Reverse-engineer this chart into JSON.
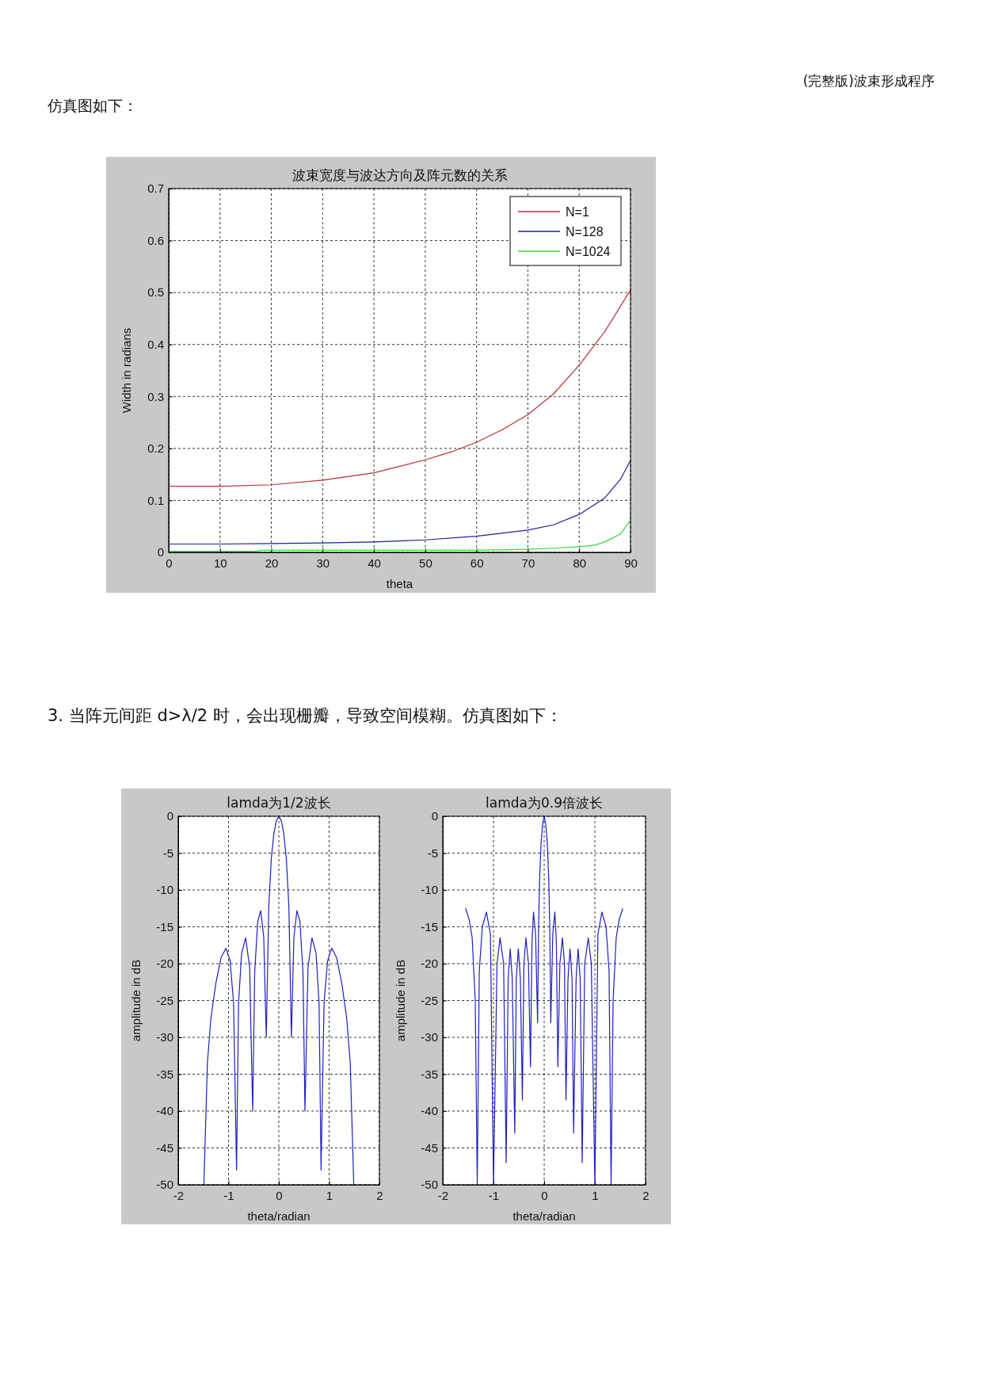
{
  "chart_data": [
    {
      "type": "line",
      "title": "波束宽度与波达方向及阵元数的关系",
      "xlabel": "theta",
      "ylabel": "Width in radians",
      "annotations": [
        "(完整版)波束形成程序",
        "仿真图如下："
      ],
      "xlim": [
        0,
        90
      ],
      "xticks": [
        0,
        10,
        20,
        30,
        40,
        50,
        60,
        70,
        80,
        90
      ],
      "ylim": [
        0,
        0.7
      ],
      "yticks": [
        0,
        0.1,
        0.2,
        0.3,
        0.4,
        0.5,
        0.6,
        0.7
      ],
      "grid": true,
      "legend": "top right",
      "series": [
        {
          "name": "N=1",
          "color": "#b83030",
          "x": [
            0,
            10,
            20,
            30,
            40,
            50,
            55,
            60,
            65,
            70,
            75,
            80,
            85,
            90
          ],
          "values": [
            0.127,
            0.127,
            0.13,
            0.139,
            0.153,
            0.178,
            0.193,
            0.212,
            0.236,
            0.265,
            0.305,
            0.36,
            0.425,
            0.505
          ]
        },
        {
          "name": "N=128",
          "color": "#1e1e9a",
          "x": [
            0,
            10,
            20,
            30,
            40,
            50,
            60,
            70,
            75,
            80,
            83,
            85,
            88,
            90
          ],
          "values": [
            0.016,
            0.016,
            0.017,
            0.018,
            0.02,
            0.024,
            0.031,
            0.043,
            0.053,
            0.073,
            0.092,
            0.105,
            0.14,
            0.177
          ]
        },
        {
          "name": "N=1024",
          "color": "#33dd33",
          "x": [
            0,
            17,
            18,
            40,
            60,
            70,
            75,
            80,
            83,
            85,
            88,
            90
          ],
          "values": [
            0.002,
            0.002,
            0.004,
            0.004,
            0.004,
            0.006,
            0.008,
            0.011,
            0.014,
            0.02,
            0.035,
            0.062
          ]
        }
      ]
    },
    {
      "type": "line",
      "title": "lamda为1/2波长",
      "xlabel": "theta/radian",
      "ylabel": "amplitude in dB",
      "annotations": [
        "3. 当阵元间距 d>λ/2 时，会出现栅瓣，导致空间模糊。仿真图如下："
      ],
      "xlim": [
        -2,
        2
      ],
      "xticks": [
        -2,
        -1,
        0,
        1,
        2
      ],
      "ylim": [
        -50,
        0
      ],
      "yticks": [
        -50,
        -45,
        -40,
        -35,
        -30,
        -25,
        -20,
        -15,
        -10,
        -5,
        0
      ],
      "grid": true,
      "series": [
        {
          "color": "#1f1fbf",
          "x": [
            -1.49,
            -1.42,
            -1.35,
            -1.25,
            -1.15,
            -1.05,
            -0.97,
            -0.9,
            -0.84,
            -0.8,
            -0.74,
            -0.66,
            -0.58,
            -0.52,
            -0.48,
            -0.42,
            -0.36,
            -0.3,
            -0.25,
            -0.2,
            -0.15,
            -0.1,
            -0.05,
            0,
            0.05,
            0.1,
            0.15,
            0.2,
            0.25,
            0.3,
            0.36,
            0.42,
            0.48,
            0.52,
            0.58,
            0.66,
            0.74,
            0.8,
            0.84,
            0.9,
            0.97,
            1.05,
            1.15,
            1.25,
            1.35,
            1.42,
            1.49
          ],
          "values": [
            -50,
            -33.5,
            -27.4,
            -22.6,
            -19.2,
            -17.9,
            -19.6,
            -25.2,
            -48,
            -25.3,
            -18.6,
            -16.5,
            -20.5,
            -40,
            -21.2,
            -14.3,
            -12.8,
            -16.4,
            -30,
            -12.3,
            -5.8,
            -2.4,
            -0.6,
            0,
            -0.6,
            -2.4,
            -5.8,
            -12.3,
            -30,
            -16.4,
            -12.8,
            -14.3,
            -21.2,
            -40,
            -20.5,
            -16.5,
            -18.6,
            -25.3,
            -48,
            -25.2,
            -19.6,
            -17.9,
            -19.2,
            -22.6,
            -27.4,
            -33.5,
            -50
          ]
        }
      ]
    },
    {
      "type": "line",
      "title": "lamda为0.9倍波长",
      "xlabel": "theta/radian",
      "ylabel": "amplitude in dB",
      "xlim": [
        -2,
        2
      ],
      "xticks": [
        -2,
        -1,
        0,
        1,
        2
      ],
      "ylim": [
        -50,
        0
      ],
      "yticks": [
        -50,
        -45,
        -40,
        -35,
        -30,
        -25,
        -20,
        -15,
        -10,
        -5,
        0
      ],
      "grid": true,
      "series": [
        {
          "color": "#1f1fbf",
          "x": [
            -1.55,
            -1.48,
            -1.42,
            -1.36,
            -1.32,
            -1.28,
            -1.22,
            -1.14,
            -1.06,
            -1.0,
            -0.93,
            -0.87,
            -0.8,
            -0.75,
            -0.71,
            -0.67,
            -0.63,
            -0.58,
            -0.55,
            -0.51,
            -0.47,
            -0.43,
            -0.4,
            -0.36,
            -0.31,
            -0.27,
            -0.24,
            -0.21,
            -0.17,
            -0.13,
            -0.11,
            -0.09,
            -0.06,
            -0.03,
            0,
            0.03,
            0.06,
            0.09,
            0.11,
            0.13,
            0.17,
            0.21,
            0.24,
            0.27,
            0.31,
            0.36,
            0.4,
            0.43,
            0.47,
            0.51,
            0.55,
            0.58,
            0.63,
            0.67,
            0.71,
            0.75,
            0.8,
            0.87,
            0.93,
            1.0,
            1.06,
            1.14,
            1.22,
            1.28,
            1.32,
            1.36,
            1.42,
            1.48,
            1.55
          ],
          "values": [
            -12.5,
            -14,
            -16.5,
            -25,
            -50,
            -21,
            -15,
            -13,
            -16,
            -50,
            -20,
            -16.5,
            -20,
            -47,
            -22,
            -18,
            -22,
            -43,
            -22,
            -18,
            -22,
            -38.5,
            -20,
            -16.5,
            -20,
            -34,
            -17,
            -13,
            -16,
            -28,
            -15,
            -8.5,
            -3.5,
            -1,
            0,
            -1,
            -3.5,
            -8.5,
            -15,
            -28,
            -16,
            -13,
            -17,
            -34,
            -20,
            -16.5,
            -20,
            -38.5,
            -22,
            -18,
            -22,
            -43,
            -22,
            -18,
            -22,
            -47,
            -20,
            -16.5,
            -20,
            -50,
            -16,
            -13,
            -15,
            -21,
            -50,
            -25,
            -16.5,
            -14,
            -12.5
          ]
        }
      ]
    }
  ]
}
